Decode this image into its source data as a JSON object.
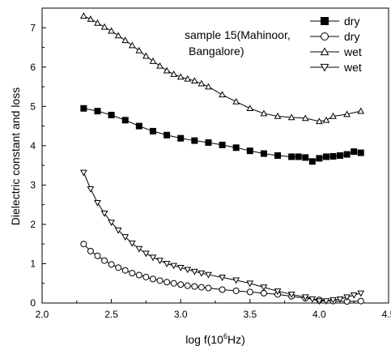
{
  "chart_data": {
    "type": "scatter",
    "xlabel_base": "log f(10",
    "xlabel_sup": "6",
    "xlabel_tail": "Hz)",
    "ylabel": "Dielectric constant and loss",
    "xlim": [
      2.0,
      4.5
    ],
    "ylim": [
      0,
      7.5
    ],
    "xticks": [
      2.0,
      2.5,
      3.0,
      3.5,
      4.0,
      4.5
    ],
    "xtick_labels": [
      "2.0",
      "2.5",
      "3.0",
      "3.5",
      "4.0",
      "4.5"
    ],
    "yticks": [
      0,
      1,
      2,
      3,
      4,
      5,
      6,
      7
    ],
    "ytick_labels": [
      "0",
      "1",
      "2",
      "3",
      "4",
      "5",
      "6",
      "7"
    ],
    "grid": false,
    "legend_placement": "top-right",
    "annotation": [
      "sample 15(Mahinoor,",
      "Bangalore)"
    ],
    "series": [
      {
        "name": "dry",
        "marker": "filled-square",
        "color": "#000000",
        "x": [
          2.3,
          2.4,
          2.5,
          2.6,
          2.7,
          2.8,
          2.9,
          3.0,
          3.1,
          3.2,
          3.3,
          3.4,
          3.5,
          3.6,
          3.7,
          3.8,
          3.85,
          3.9,
          3.95,
          4.0,
          4.05,
          4.1,
          4.15,
          4.2,
          4.25,
          4.3
        ],
        "y": [
          4.95,
          4.88,
          4.78,
          4.65,
          4.5,
          4.37,
          4.27,
          4.19,
          4.13,
          4.08,
          4.02,
          3.95,
          3.87,
          3.8,
          3.75,
          3.72,
          3.72,
          3.7,
          3.6,
          3.68,
          3.72,
          3.73,
          3.75,
          3.78,
          3.85,
          3.82
        ]
      },
      {
        "name": "dry",
        "marker": "open-circle",
        "color": "#000000",
        "x": [
          2.3,
          2.35,
          2.4,
          2.45,
          2.5,
          2.55,
          2.6,
          2.65,
          2.7,
          2.75,
          2.8,
          2.85,
          2.9,
          2.95,
          3.0,
          3.05,
          3.1,
          3.15,
          3.2,
          3.3,
          3.4,
          3.5,
          3.6,
          3.7,
          3.8,
          3.9,
          4.0,
          4.1,
          4.2,
          4.3
        ],
        "y": [
          1.5,
          1.32,
          1.2,
          1.08,
          0.98,
          0.9,
          0.83,
          0.76,
          0.71,
          0.66,
          0.61,
          0.57,
          0.53,
          0.5,
          0.47,
          0.44,
          0.42,
          0.4,
          0.38,
          0.34,
          0.31,
          0.28,
          0.25,
          0.22,
          0.17,
          0.12,
          0.08,
          0.05,
          0.04,
          0.05
        ]
      },
      {
        "name": "wet",
        "marker": "open-triangle-up",
        "color": "#000000",
        "x": [
          2.3,
          2.35,
          2.4,
          2.45,
          2.5,
          2.55,
          2.6,
          2.65,
          2.7,
          2.75,
          2.8,
          2.85,
          2.9,
          2.95,
          3.0,
          3.05,
          3.1,
          3.15,
          3.2,
          3.3,
          3.4,
          3.5,
          3.6,
          3.7,
          3.8,
          3.9,
          4.0,
          4.05,
          4.1,
          4.2,
          4.3
        ],
        "y": [
          7.3,
          7.22,
          7.12,
          7.02,
          6.92,
          6.8,
          6.68,
          6.55,
          6.42,
          6.28,
          6.15,
          6.03,
          5.91,
          5.82,
          5.75,
          5.7,
          5.65,
          5.58,
          5.5,
          5.3,
          5.12,
          4.95,
          4.82,
          4.75,
          4.72,
          4.7,
          4.62,
          4.65,
          4.75,
          4.8,
          4.88
        ]
      },
      {
        "name": "wet",
        "marker": "open-triangle-down",
        "color": "#000000",
        "x": [
          2.3,
          2.35,
          2.4,
          2.45,
          2.5,
          2.55,
          2.6,
          2.65,
          2.7,
          2.75,
          2.8,
          2.85,
          2.9,
          2.95,
          3.0,
          3.05,
          3.1,
          3.15,
          3.2,
          3.3,
          3.4,
          3.5,
          3.6,
          3.7,
          3.8,
          3.9,
          3.95,
          4.0,
          4.05,
          4.1,
          4.15,
          4.2,
          4.25,
          4.3
        ],
        "y": [
          3.32,
          2.9,
          2.55,
          2.28,
          2.05,
          1.85,
          1.68,
          1.52,
          1.38,
          1.26,
          1.16,
          1.08,
          1.0,
          0.95,
          0.9,
          0.85,
          0.8,
          0.76,
          0.72,
          0.65,
          0.58,
          0.5,
          0.4,
          0.3,
          0.22,
          0.15,
          0.1,
          0.05,
          0.05,
          0.08,
          0.1,
          0.15,
          0.2,
          0.25
        ]
      }
    ]
  }
}
